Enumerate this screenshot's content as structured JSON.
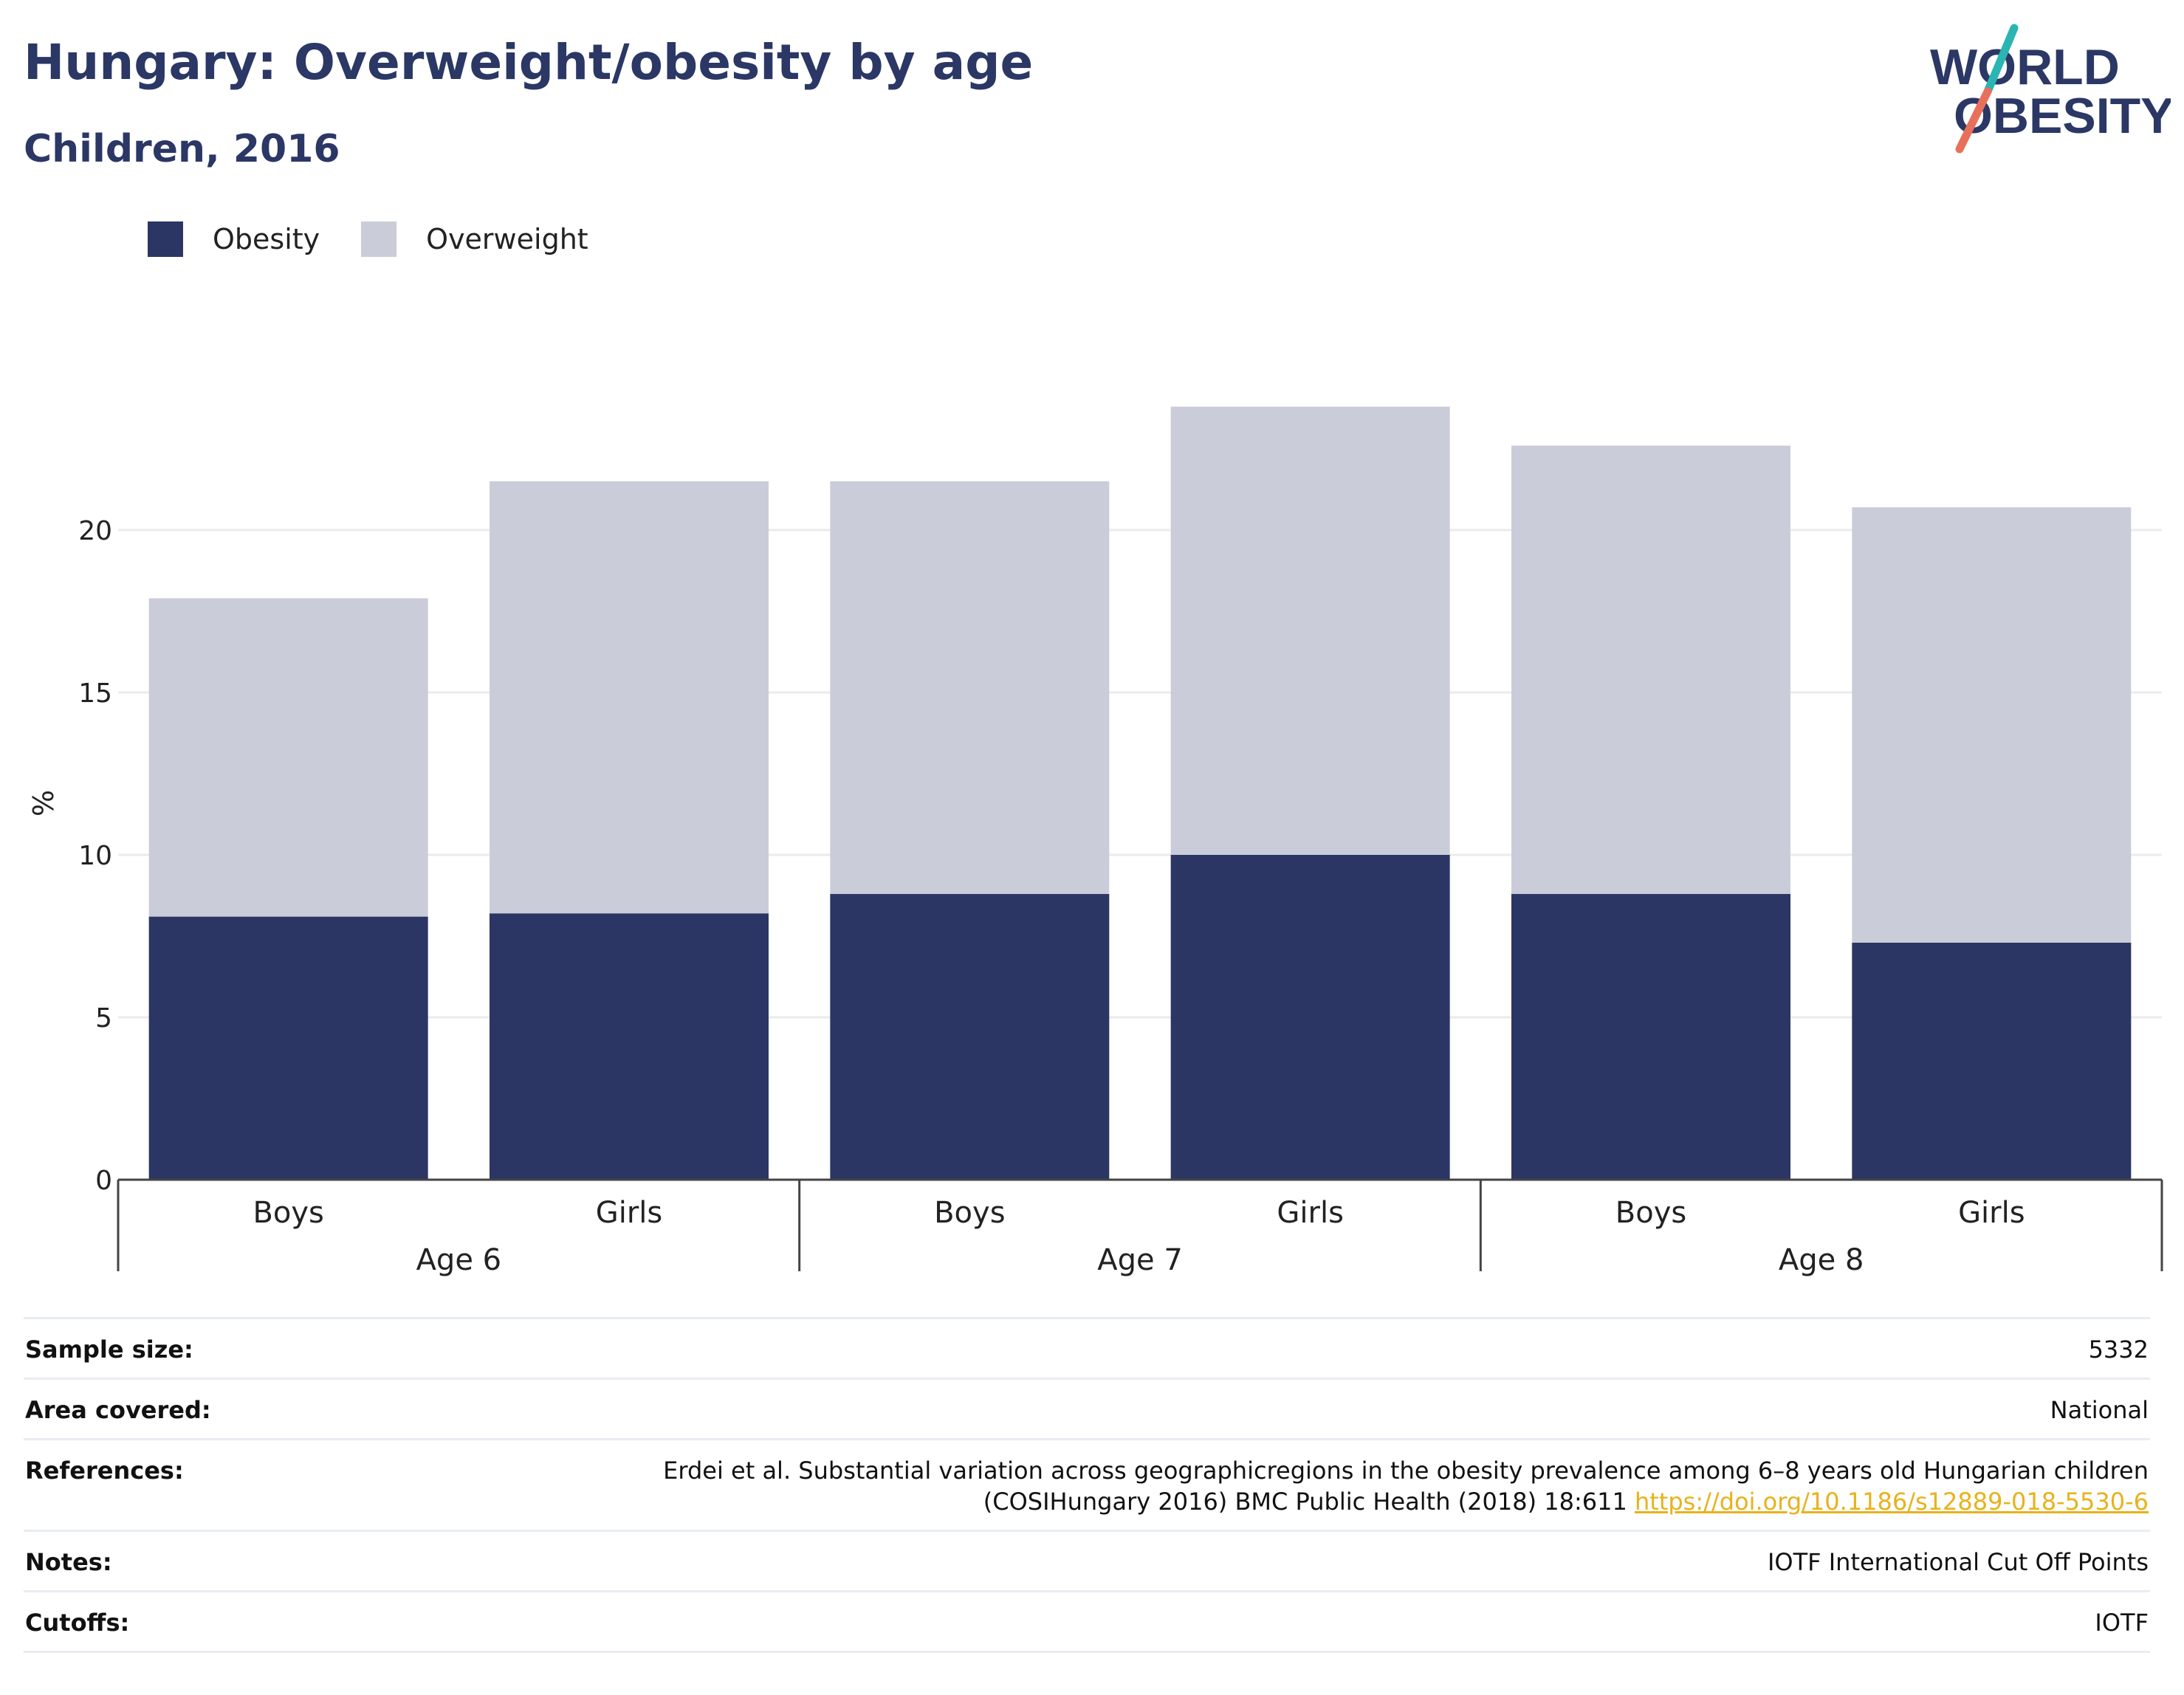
{
  "title": "Hungary: Overweight/obesity by age",
  "subtitle": "Children, 2016",
  "logo": {
    "line1": "WORLD",
    "line2": "OBESITY"
  },
  "colors": {
    "obesity": "#2b3664",
    "overweight": "#cacdd9",
    "title": "#2b3765",
    "accent_teal": "#2ab5b3",
    "accent_coral": "#e8705a",
    "link": "#e8b21c"
  },
  "chart_data": {
    "type": "bar",
    "stacked": true,
    "ylabel": "%",
    "ylim": [
      0,
      25
    ],
    "yticks": [
      0,
      5,
      10,
      15,
      20
    ],
    "grid": true,
    "legend_position": "top-left",
    "groups": [
      "Age 6",
      "Age 7",
      "Age 8"
    ],
    "categories": [
      "Boys",
      "Girls",
      "Boys",
      "Girls",
      "Boys",
      "Girls"
    ],
    "series": [
      {
        "name": "Obesity",
        "values": [
          8.1,
          8.2,
          8.8,
          10.0,
          8.8,
          7.3
        ]
      },
      {
        "name": "Overweight",
        "values": [
          9.8,
          13.3,
          12.7,
          13.8,
          13.8,
          13.4
        ]
      }
    ]
  },
  "info": {
    "rows": [
      {
        "label": "Sample size:",
        "value": "5332"
      },
      {
        "label": "Area covered:",
        "value": "National"
      },
      {
        "label": "References:",
        "value_line1": "Erdei et al. Substantial variation across geographicregions in the obesity prevalence among 6–8 years old Hungarian children",
        "value_line2": "(COSIHungary 2016) BMC Public Health (2018) 18:611",
        "link": "https://doi.org/10.1186/s12889-018-5530-6"
      },
      {
        "label": "Notes:",
        "value": "IOTF International Cut Off Points"
      },
      {
        "label": "Cutoffs:",
        "value": "IOTF"
      }
    ]
  }
}
